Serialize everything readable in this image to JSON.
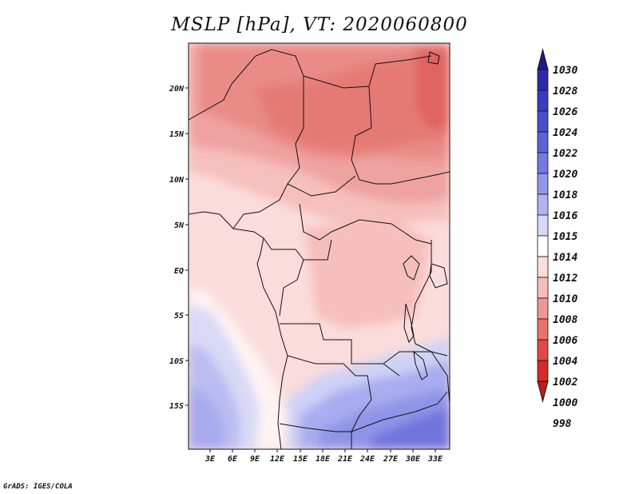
{
  "title": "MSLP [hPa], VT: 2020060800",
  "footer": "GrADS: IGES/COLA",
  "map": {
    "lat_labels": [
      "20N",
      "15N",
      "10N",
      "5N",
      "EQ",
      "5S",
      "10S",
      "15S"
    ],
    "lon_labels": [
      "3E",
      "6E",
      "9E",
      "12E",
      "15E",
      "18E",
      "21E",
      "24E",
      "27E",
      "30E",
      "33E"
    ]
  },
  "colorbar": {
    "levels": [
      "1030",
      "1028",
      "1026",
      "1024",
      "1022",
      "1020",
      "1018",
      "1016",
      "1015",
      "1014",
      "1012",
      "1010",
      "1008",
      "1006",
      "1004",
      "1002",
      "1000",
      "998"
    ],
    "colors": [
      "#1f1a8a",
      "#2c2aa8",
      "#3a3cc0",
      "#4a4fcc",
      "#5d63d6",
      "#7478e0",
      "#9196ea",
      "#b1b4f1",
      "#d6d8f7",
      "#ffffff",
      "#fbdedc",
      "#f6bdba",
      "#ef9893",
      "#e8736c",
      "#e04a43",
      "#d42a28",
      "#bb1f1c"
    ]
  }
}
